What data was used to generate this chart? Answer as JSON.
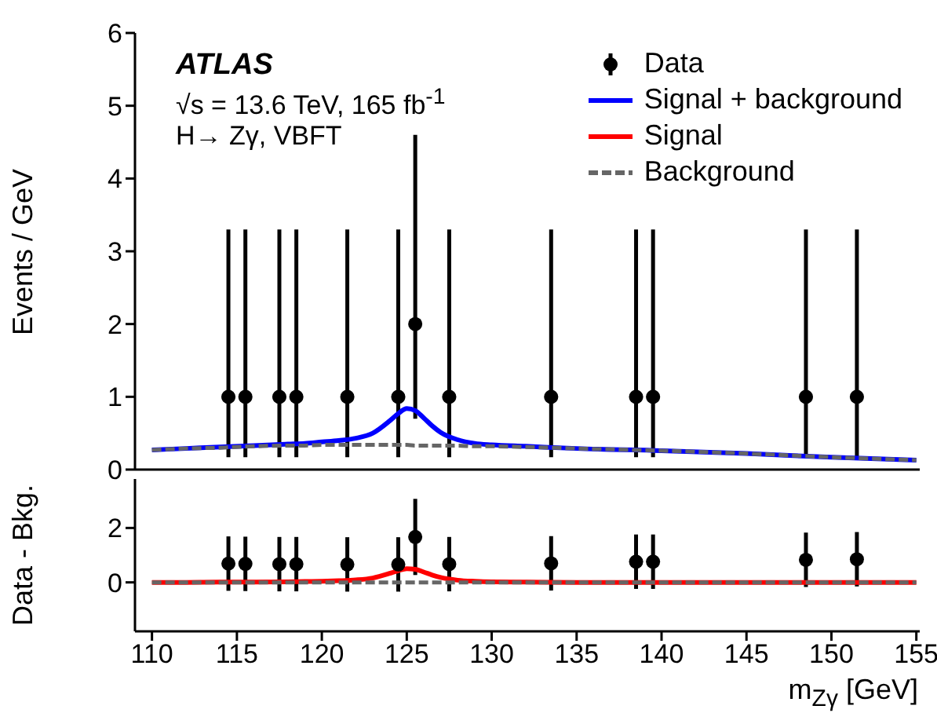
{
  "chart_data": [
    {
      "type": "scatter",
      "xlim": [
        109,
        155.2
      ],
      "xticks": [
        110,
        115,
        120,
        125,
        130,
        135,
        140,
        145,
        150,
        155
      ],
      "ylim": [
        0,
        6
      ],
      "yticks": [
        0,
        1,
        2,
        3,
        4,
        5,
        6
      ],
      "tick_labels": "y",
      "ylabel": "Events / GeV",
      "legend": "top right",
      "annotations": [
        "ATLAS",
        "√s = 13.6 TeV, 165 fb$^{-1}$",
        "H→ Zγ, VBFT"
      ],
      "series": [
        {
          "name": "Data",
          "color": "#000000",
          "marker": "circle",
          "x": [
            114.5,
            115.5,
            117.5,
            118.5,
            121.5,
            124.5,
            125.5,
            127.5,
            133.5,
            138.5,
            139.5,
            148.5,
            151.5
          ],
          "values": [
            1,
            1,
            1,
            1,
            1,
            1,
            2,
            1,
            1,
            1,
            1,
            1,
            1
          ],
          "errors": [
            [
              0.17,
              3.3
            ],
            [
              0.17,
              3.3
            ],
            [
              0.17,
              3.3
            ],
            [
              0.17,
              3.3
            ],
            [
              0.17,
              3.3
            ],
            [
              0.17,
              3.3
            ],
            [
              0.7,
              4.6
            ],
            [
              0.17,
              3.3
            ],
            [
              0.17,
              3.3
            ],
            [
              0.17,
              3.3
            ],
            [
              0.17,
              3.3
            ],
            [
              0.17,
              3.3
            ],
            [
              0.17,
              3.3
            ]
          ]
        },
        {
          "name": "Signal + background",
          "type": "line",
          "color": "#0000ff",
          "line_style": "solid",
          "x": [
            110,
            112,
            114,
            116,
            118,
            119,
            120,
            121,
            122,
            123,
            124,
            124.5,
            125,
            125.5,
            126,
            126.5,
            127,
            128,
            129,
            130,
            132,
            135,
            140,
            145,
            150,
            155
          ],
          "values": [
            0.27,
            0.29,
            0.31,
            0.33,
            0.35,
            0.36,
            0.38,
            0.4,
            0.43,
            0.5,
            0.67,
            0.77,
            0.84,
            0.81,
            0.71,
            0.6,
            0.51,
            0.41,
            0.36,
            0.34,
            0.32,
            0.29,
            0.26,
            0.22,
            0.17,
            0.13
          ]
        },
        {
          "name": "Background",
          "type": "line",
          "color": "#666666",
          "line_style": "dashed",
          "x": [
            110,
            112,
            114,
            116,
            118,
            119,
            120,
            121,
            122,
            123,
            124,
            124.5,
            125,
            125.5,
            126,
            126.5,
            127,
            128,
            129,
            130,
            132,
            135,
            140,
            145,
            150,
            155
          ],
          "values": [
            0.27,
            0.29,
            0.3,
            0.32,
            0.33,
            0.33,
            0.34,
            0.34,
            0.34,
            0.34,
            0.34,
            0.34,
            0.34,
            0.33,
            0.33,
            0.33,
            0.33,
            0.33,
            0.32,
            0.32,
            0.31,
            0.29,
            0.26,
            0.22,
            0.17,
            0.13
          ]
        }
      ]
    },
    {
      "type": "scatter",
      "xlim": [
        109,
        155.2
      ],
      "xticks": [
        110,
        115,
        120,
        125,
        130,
        135,
        140,
        145,
        150,
        155
      ],
      "ylim": [
        -1.8,
        3.8
      ],
      "yticks": [
        0,
        2
      ],
      "xlabel": "m$_{Zγ}$ [GeV]",
      "ylabel": "Data - Bkg.",
      "legend": false,
      "series": [
        {
          "color": "#000000",
          "marker": "circle",
          "x": [
            114.5,
            115.5,
            117.5,
            118.5,
            121.5,
            124.5,
            125.5,
            127.5,
            133.5,
            138.5,
            139.5,
            148.5,
            151.5
          ],
          "values": [
            0.69,
            0.68,
            0.67,
            0.67,
            0.66,
            0.66,
            1.67,
            0.67,
            0.7,
            0.76,
            0.76,
            0.83,
            0.85
          ],
          "errors": [
            1,
            1,
            1,
            1,
            1,
            1,
            1.4,
            1,
            1,
            1,
            1,
            1,
            1
          ]
        },
        {
          "name": "Signal",
          "type": "line",
          "color": "#ff0000",
          "line_style": "solid",
          "x": [
            110,
            112,
            114,
            116,
            118,
            119,
            120,
            121,
            122,
            123,
            124,
            124.5,
            125,
            125.5,
            126,
            126.5,
            127,
            128,
            129,
            130,
            132,
            135,
            140,
            145,
            150,
            155
          ],
          "values": [
            0,
            0,
            0.01,
            0.01,
            0.02,
            0.03,
            0.04,
            0.06,
            0.09,
            0.16,
            0.33,
            0.43,
            0.5,
            0.48,
            0.38,
            0.27,
            0.18,
            0.08,
            0.04,
            0.02,
            0.01,
            0,
            0,
            0,
            0,
            0
          ]
        },
        {
          "type": "line",
          "color": "#666666",
          "line_style": "dashed",
          "x": [
            110,
            155
          ],
          "values": [
            0,
            0
          ]
        }
      ]
    }
  ]
}
